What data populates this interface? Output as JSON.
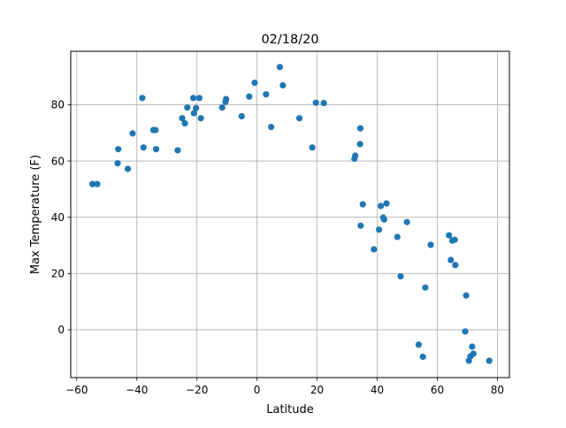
{
  "chart_data": {
    "type": "scatter",
    "title": "02/18/20",
    "xlabel": "Latitude",
    "ylabel": "Max Temperature (F)",
    "xlim": [
      -62,
      84
    ],
    "ylim": [
      -17,
      99
    ],
    "xticks": [
      -60,
      -40,
      -20,
      0,
      20,
      40,
      60,
      80
    ],
    "yticks": [
      0,
      20,
      40,
      60,
      80
    ],
    "xtick_labels": [
      "−60",
      "−40",
      "−20",
      "0",
      "20",
      "40",
      "60",
      "80"
    ],
    "ytick_labels": [
      "0",
      "20",
      "40",
      "60",
      "80"
    ],
    "grid": true,
    "marker_color": "#1f77b4",
    "series": [
      {
        "x": [
          -54.8,
          -53.2,
          -46.4,
          -46.2,
          -43.0,
          -41.4,
          -38.2,
          -37.8,
          -34.5,
          -33.8,
          -33.6,
          -26.4,
          -24.9,
          -24.0,
          -23.2,
          -21.2,
          -21.0,
          -20.3,
          -19.2,
          -18.7,
          -11.6,
          -10.5,
          -10.3,
          -5.1,
          -2.6,
          -0.8,
          3.0,
          4.7,
          7.6,
          8.6,
          14.1,
          18.4,
          19.6,
          22.2,
          32.4,
          32.7,
          34.3,
          34.4,
          34.5,
          35.2,
          38.9,
          40.6,
          41.2,
          42.0,
          42.3,
          43.1,
          46.7,
          47.8,
          49.9,
          53.8,
          55.2,
          56.0,
          57.8,
          63.9,
          64.5,
          65.0,
          65.8,
          66.0,
          69.3,
          69.6,
          70.5,
          71.0,
          71.6,
          72.0,
          77.3
        ],
        "y": [
          51.8,
          51.8,
          59.2,
          64.2,
          57.2,
          69.8,
          82.4,
          64.8,
          71.0,
          71.0,
          64.2,
          63.8,
          75.2,
          73.4,
          79.0,
          82.4,
          77.0,
          78.8,
          82.4,
          75.2,
          79.0,
          81.0,
          82.0,
          75.9,
          82.9,
          87.8,
          83.7,
          72.1,
          93.4,
          86.9,
          75.2,
          64.8,
          80.7,
          80.6,
          60.8,
          61.9,
          66.0,
          71.6,
          37.0,
          44.6,
          28.6,
          35.6,
          44.0,
          39.9,
          39.2,
          44.9,
          33.0,
          19.0,
          38.3,
          -5.3,
          -9.6,
          15.0,
          30.2,
          33.6,
          24.8,
          31.7,
          32.0,
          23.0,
          -0.6,
          12.2,
          -11.0,
          -9.5,
          -6.0,
          -8.5,
          -11.0
        ]
      }
    ]
  }
}
